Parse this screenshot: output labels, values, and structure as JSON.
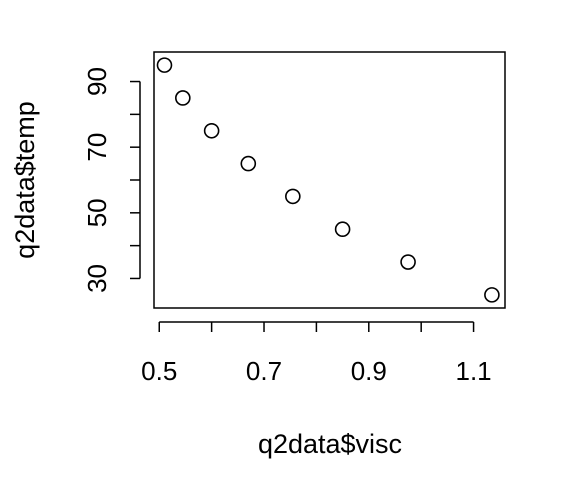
{
  "chart_data": {
    "type": "scatter",
    "title": "",
    "xlabel": "q2data$visc",
    "ylabel": "q2data$temp",
    "xlim": [
      0.49,
      1.16
    ],
    "ylim": [
      21,
      99
    ],
    "x_ticks": [
      0.5,
      0.6,
      0.7,
      0.8,
      0.9,
      1.0,
      1.1
    ],
    "x_tick_labels": [
      "0.5",
      "",
      "0.7",
      "",
      "0.9",
      "",
      "1.1"
    ],
    "y_ticks": [
      30,
      40,
      50,
      60,
      70,
      80,
      90
    ],
    "y_tick_labels": [
      "30",
      "",
      "50",
      "",
      "70",
      "",
      "90"
    ],
    "grid": false,
    "legend": "none",
    "marker": "open-circle",
    "series": [
      {
        "x": [
          0.51,
          0.545,
          0.6,
          0.67,
          0.755,
          0.85,
          0.975,
          1.135
        ],
        "y": [
          95,
          85,
          75,
          65,
          55,
          45,
          35,
          25
        ]
      }
    ]
  }
}
